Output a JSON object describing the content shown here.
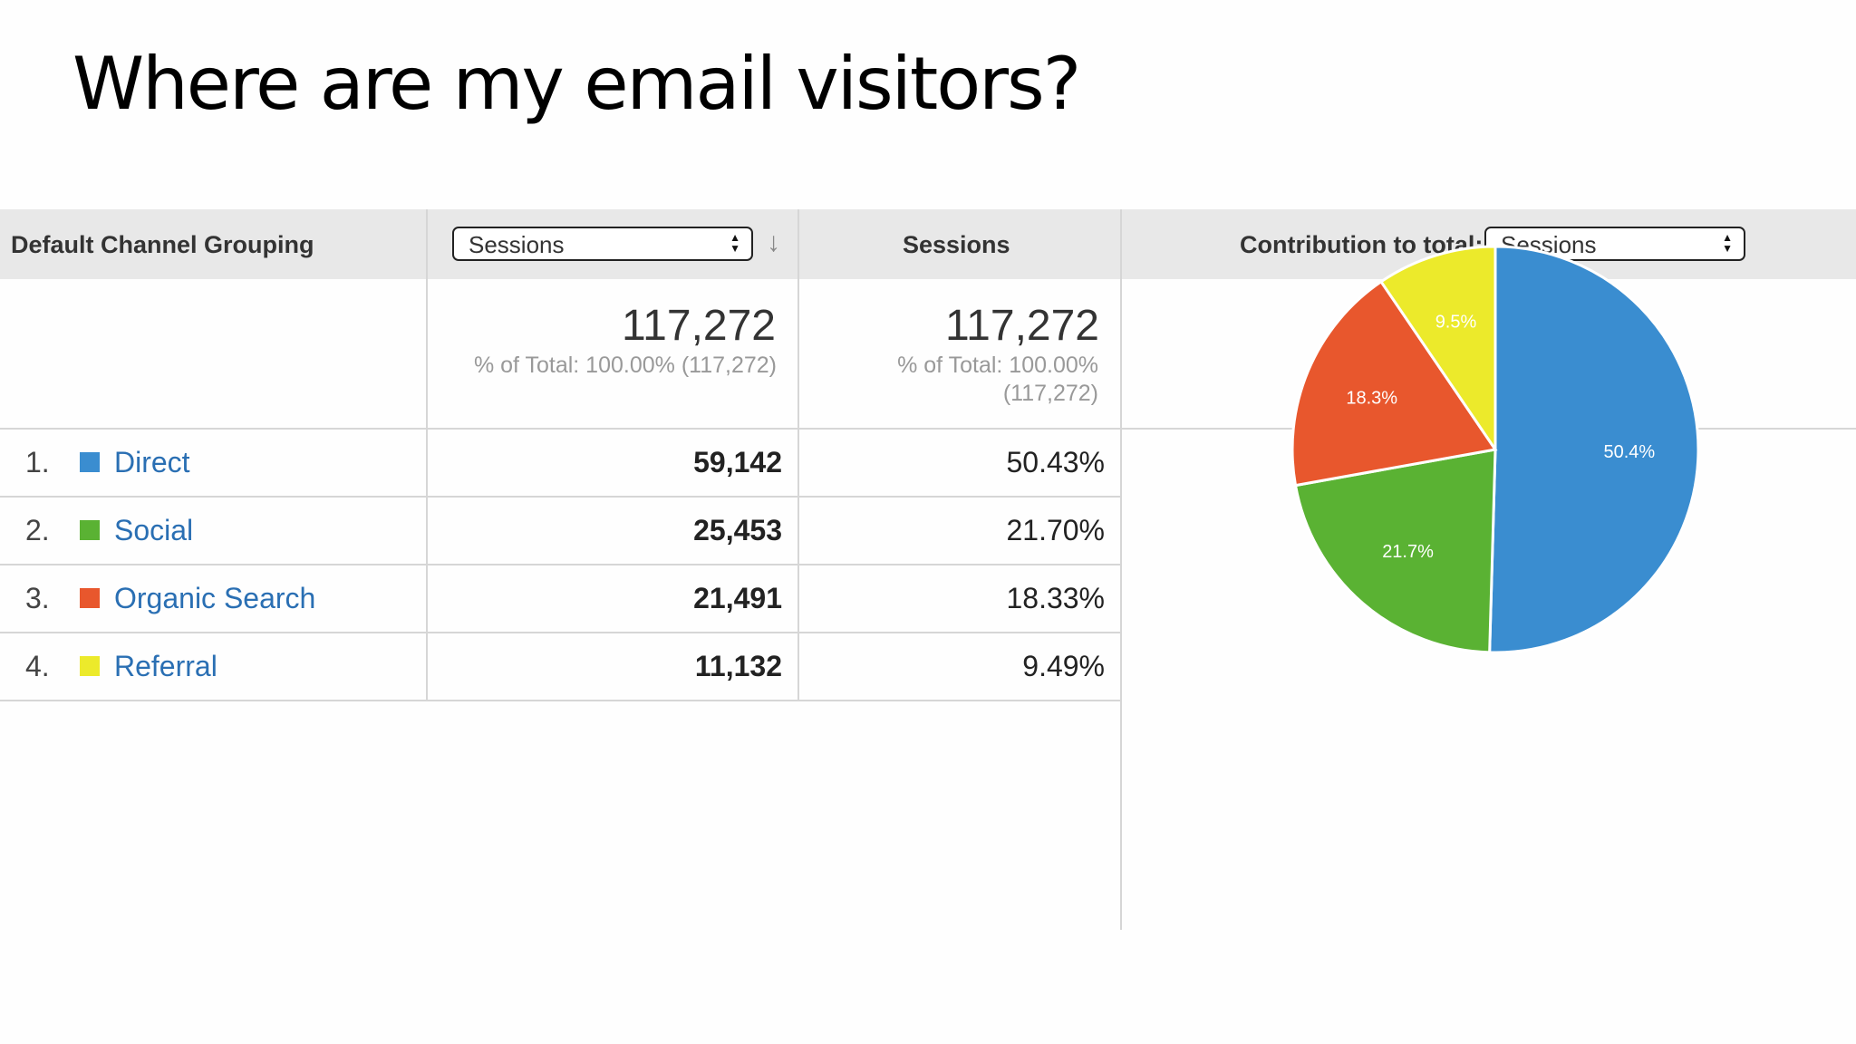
{
  "slide": {
    "title": "Where are my email visitors?"
  },
  "table": {
    "col_dimension": "Default Channel Grouping",
    "metric_select": "Sessions",
    "col_sessions": "Sessions",
    "contribution_label": "Contribution to total:",
    "contribution_select": "Sessions",
    "totals": {
      "metric_value": "117,272",
      "metric_sub": "% of Total: 100.00% (117,272)",
      "sessions_value": "117,272",
      "sessions_sub_1": "% of Total: 100.00%",
      "sessions_sub_2": "(117,272)"
    },
    "rows": [
      {
        "num": "1.",
        "label": "Direct",
        "value": "59,142",
        "pct": "50.43%",
        "color": "#3a8dd0"
      },
      {
        "num": "2.",
        "label": "Social",
        "value": "25,453",
        "pct": "21.70%",
        "color": "#5ab233"
      },
      {
        "num": "3.",
        "label": "Organic Search",
        "value": "21,491",
        "pct": "18.33%",
        "color": "#e8572d"
      },
      {
        "num": "4.",
        "label": "Referral",
        "value": "11,132",
        "pct": "9.49%",
        "color": "#ecea2b"
      }
    ]
  },
  "chart_data": {
    "type": "pie",
    "categories": [
      "Direct",
      "Social",
      "Organic Search",
      "Referral"
    ],
    "values": [
      50.4,
      21.7,
      18.3,
      9.5
    ],
    "labels": [
      "50.4%",
      "21.7%",
      "18.3%",
      "9.5%"
    ],
    "colors": [
      "#3a8dd0",
      "#5ab233",
      "#e8572d",
      "#ecea2b"
    ]
  }
}
